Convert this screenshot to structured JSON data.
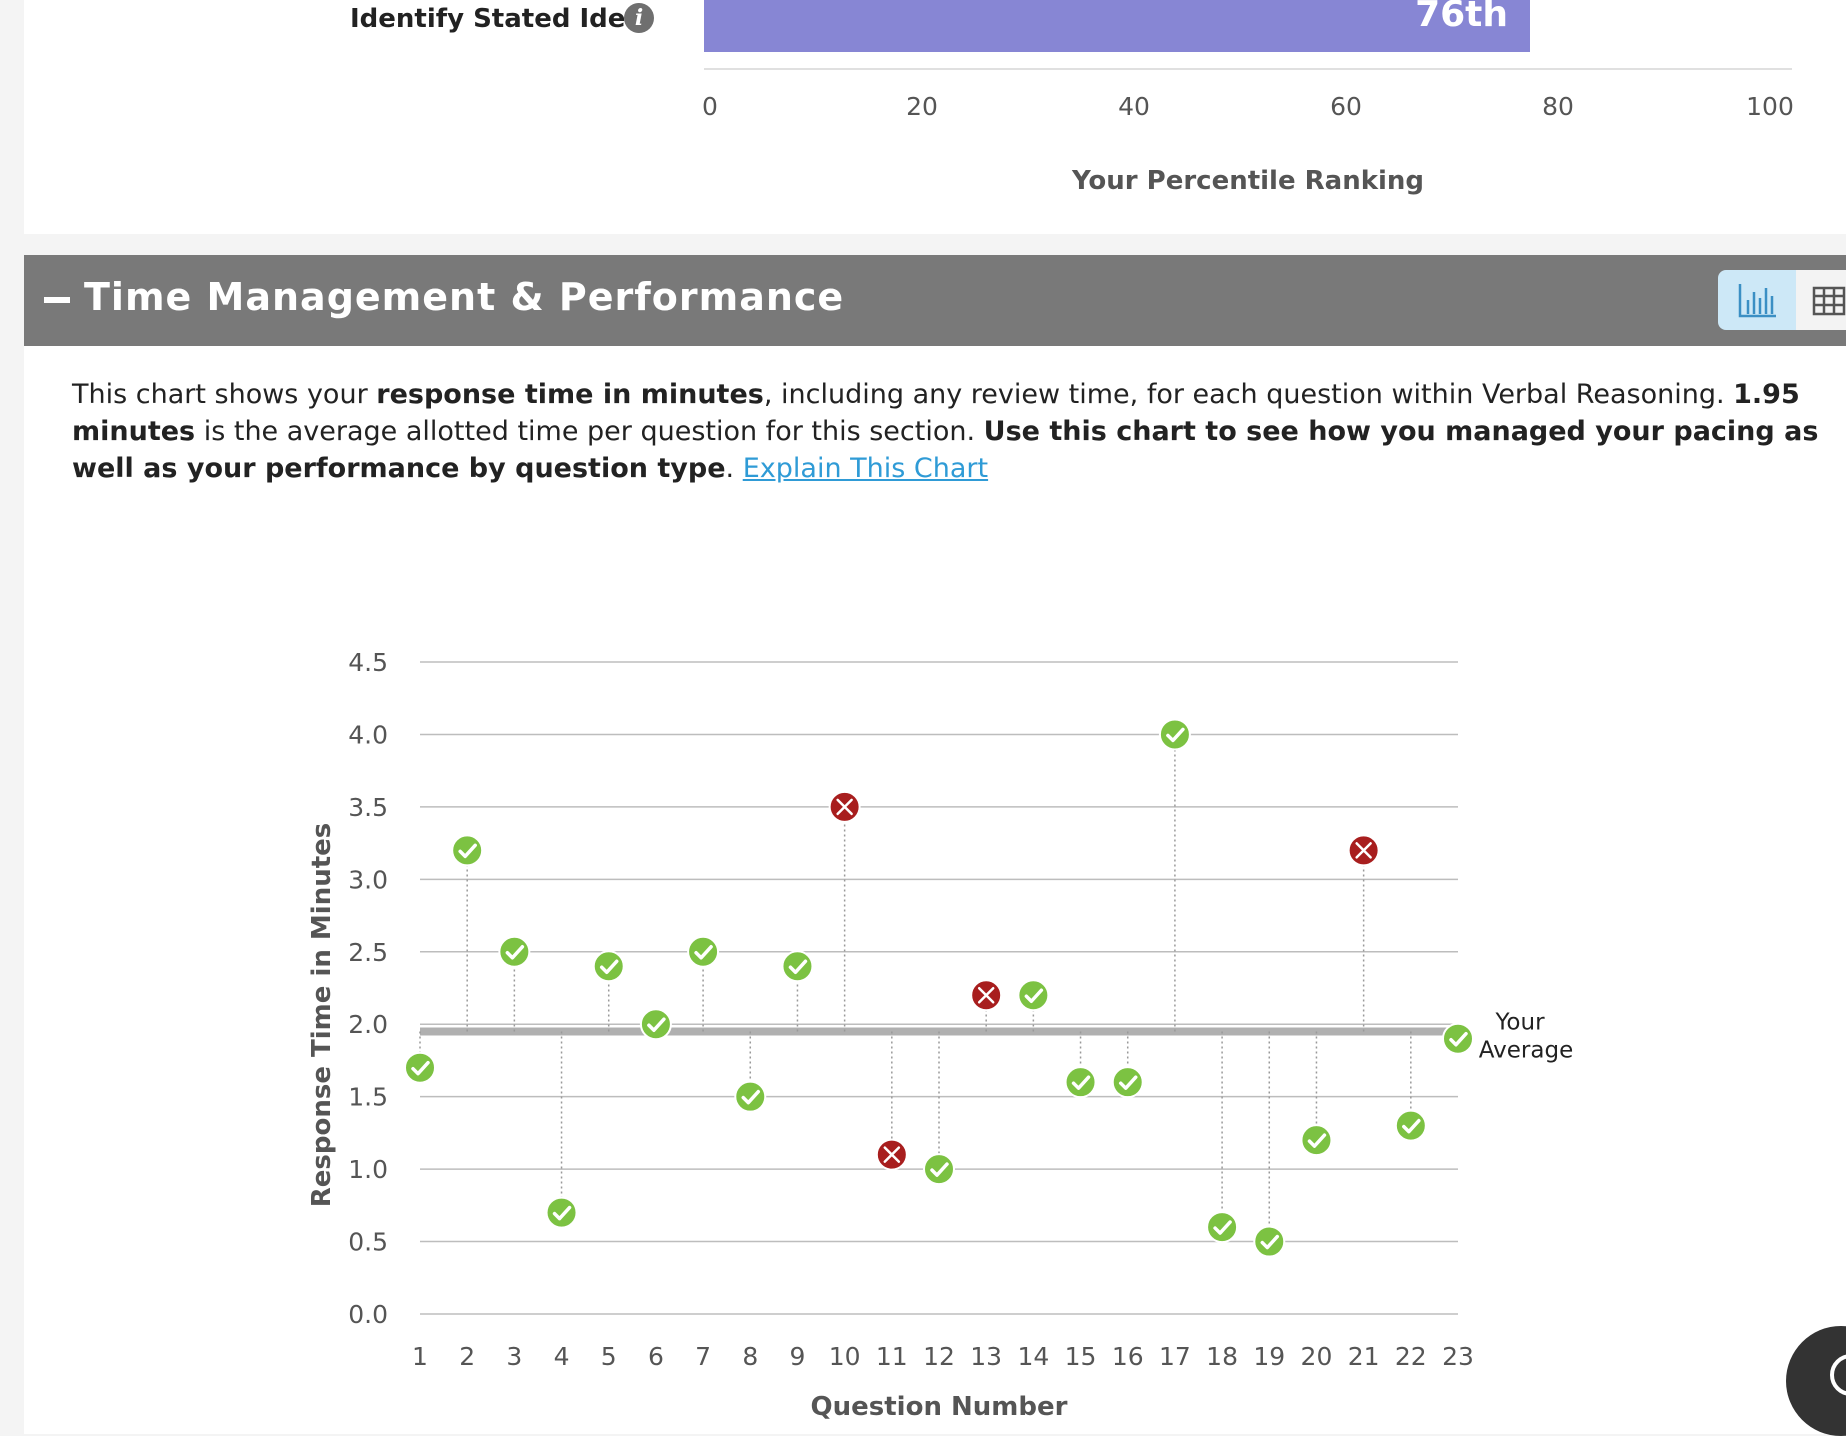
{
  "top_row": {
    "label": "Identify Stated Idea",
    "info_icon": "info-icon",
    "bar_label": "76th",
    "bar_color": "#8786d4",
    "ticks": [
      "0",
      "20",
      "40",
      "60",
      "80",
      "100"
    ],
    "axis_title": "Your Percentile Ranking"
  },
  "section": {
    "title": "Time Management & Performance",
    "collapse_icon": "minus-icon",
    "chart_view_icon": "bar-chart-icon",
    "table_view_icon": "table-icon",
    "header_color": "#797979"
  },
  "description": {
    "p1": "This chart shows your ",
    "b1": "response time in minutes",
    "p2": ", including any review time, for each question within Verbal Reasoning. ",
    "b2": "1.95 minutes",
    "p3": " is the average allotted time per question for this section. ",
    "b3": "Use this chart to see how you managed your pacing as well as your performance by question type",
    "p4": ". ",
    "link": "Explain This Chart"
  },
  "chart_data": {
    "type": "scatter",
    "xlabel": "Question Number",
    "ylabel": "Response Time in Minutes",
    "ylim": [
      0,
      4.5
    ],
    "yticks": [
      "0.0",
      "0.5",
      "1.0",
      "1.5",
      "2.0",
      "2.5",
      "3.0",
      "3.5",
      "4.0",
      "4.5"
    ],
    "categories": [
      "1",
      "2",
      "3",
      "4",
      "5",
      "6",
      "7",
      "8",
      "9",
      "10",
      "11",
      "12",
      "13",
      "14",
      "15",
      "16",
      "17",
      "18",
      "19",
      "20",
      "21",
      "22",
      "23"
    ],
    "values": [
      1.7,
      3.2,
      2.5,
      0.7,
      2.4,
      2.0,
      2.5,
      1.5,
      2.4,
      3.5,
      1.1,
      1.0,
      2.2,
      2.2,
      1.6,
      1.6,
      4.0,
      0.6,
      0.5,
      1.2,
      3.2,
      1.3,
      1.9
    ],
    "correct": [
      true,
      true,
      true,
      true,
      true,
      true,
      true,
      true,
      true,
      false,
      false,
      true,
      false,
      true,
      true,
      true,
      true,
      true,
      true,
      true,
      false,
      true,
      true
    ],
    "average": 1.95,
    "average_label_line1": "Your",
    "average_label_line2": "Average",
    "correct_color": "#7cc242",
    "incorrect_color": "#a81e1e",
    "grid": true
  },
  "help_icon": "help-icon"
}
